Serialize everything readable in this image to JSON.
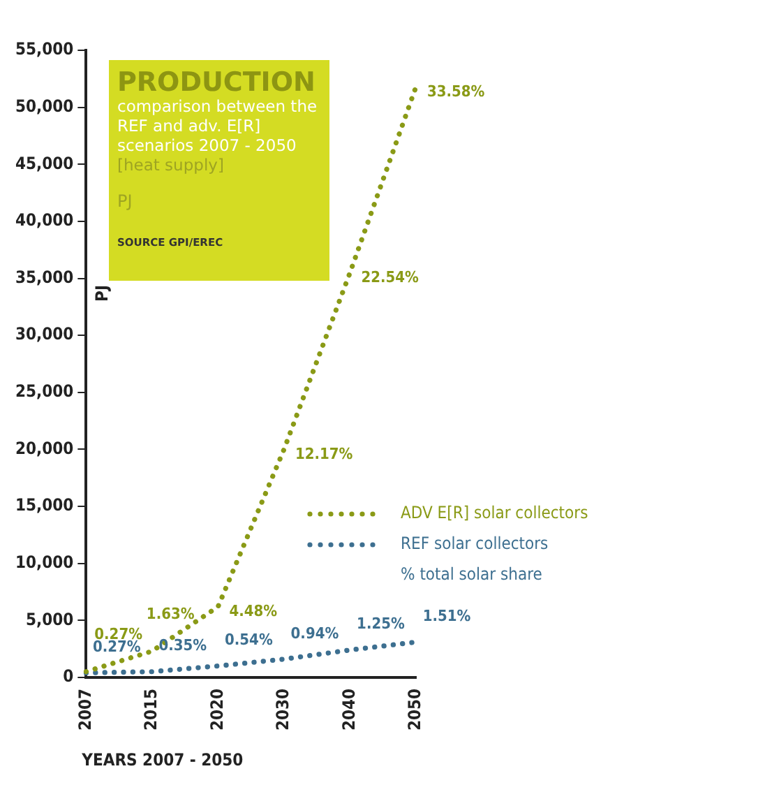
{
  "chart_data": {
    "type": "line",
    "title": "PRODUCTION",
    "subtitle": "comparison between the REF and adv. E[R] scenarios 2007 - 2050",
    "xlabel": "YEARS 2007 - 2050",
    "ylabel": "PJ",
    "categories": [
      "2007",
      "2015",
      "2020",
      "2030",
      "2040",
      "2050"
    ],
    "series": [
      {
        "name": "ADV E[R] solar collectors",
        "color": "#8a9a16",
        "values": [
          500,
          2300,
          6200,
          20000,
          35500,
          51800
        ]
      },
      {
        "name": "REF solar collectors",
        "color": "#3d6f90",
        "values": [
          400,
          500,
          1000,
          1600,
          2400,
          3100
        ]
      }
    ],
    "ylim": [
      0,
      55000
    ],
    "yticks": [
      0,
      {
        "value": 5000,
        "label": "5,000"
      },
      {
        "value": 10000,
        "label": "10,000"
      },
      {
        "value": 15000,
        "label": "15,000"
      },
      {
        "value": 20000,
        "label": "20,000"
      },
      {
        "value": 25000,
        "label": "25,000"
      },
      {
        "value": 30000,
        "label": "30,000"
      },
      {
        "value": 35000,
        "label": "35,000"
      },
      {
        "value": 40000,
        "label": "40,000"
      },
      {
        "value": 45000,
        "label": "45,000"
      },
      {
        "value": 50000,
        "label": "50,000"
      },
      {
        "value": 55000,
        "label": "55,000"
      }
    ],
    "grid": false,
    "legend": "right",
    "marker": "none",
    "line_style": "dotted",
    "annotations": [
      "[heat supply]",
      "PJ",
      "SOURCE GPI/EREC",
      "% total solar share",
      "0.27%",
      {
        "text": "0.27%",
        "x": "2007",
        "y": 400
      },
      {
        "text": "0.35%",
        "x": "2015",
        "y": 500
      },
      {
        "text": "0.54%",
        "x": "2020",
        "y": 1000
      },
      {
        "text": "0.94%",
        "x": "2030",
        "y": 1600
      },
      {
        "text": "1.25%",
        "x": "2040",
        "y": 2400
      },
      {
        "text": "1.51%",
        "x": "2050",
        "y": 3100
      },
      {
        "text": "1.63%",
        "x": "2015",
        "y": 2300
      },
      {
        "text": "4.48%",
        "x": "2020",
        "y": 6200
      },
      {
        "text": "12.17%",
        "x": "2030",
        "y": 20000
      },
      {
        "text": "22.54%",
        "x": "2040",
        "y": 35500
      },
      {
        "text": "33.58%",
        "x": "2050",
        "y": 51800
      }
    ]
  }
}
